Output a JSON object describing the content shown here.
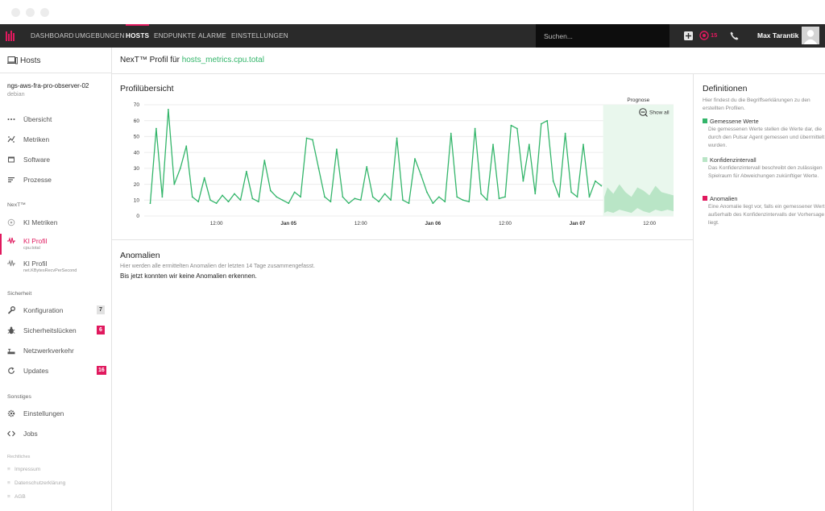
{
  "nav": {
    "items": [
      "DASHBOARD",
      "UMGEBUNGEN",
      "HOSTS",
      "ENDPUNKTE",
      "ALARME",
      "EINSTELLUNGEN"
    ],
    "active": "HOSTS",
    "search_placeholder": "Suchen...",
    "alarm_count": "15",
    "user_name": "Max Tarantik",
    "accent_color": "#e0195e"
  },
  "sidebar": {
    "title": "Hosts",
    "hostname": "ngs-aws-fra-pro-observer-02",
    "os": "debian",
    "main_items": [
      {
        "label": "Übersicht",
        "icon": "dots-icon"
      },
      {
        "label": "Metriken",
        "icon": "metrics-icon"
      },
      {
        "label": "Software",
        "icon": "software-icon"
      },
      {
        "label": "Prozesse",
        "icon": "processes-icon"
      }
    ],
    "next_section": "NexT™",
    "next_items": [
      {
        "label": "KI Metriken",
        "sub": "",
        "icon": "ai-metrics-icon"
      },
      {
        "label": "KI Profil",
        "sub": "cpu.total",
        "icon": "ai-profile-icon",
        "active": true
      },
      {
        "label": "KI Profil",
        "sub": "net.KBytesRecvPerSecond",
        "icon": "ai-profile-icon"
      }
    ],
    "security_section": "Sicherheit",
    "security_items": [
      {
        "label": "Konfiguration",
        "badge": "7",
        "badge_style": "gray",
        "icon": "wrench-icon"
      },
      {
        "label": "Sicherheitslücken",
        "badge": "6",
        "badge_style": "pink",
        "icon": "bug-icon"
      },
      {
        "label": "Netzwerkverkehr",
        "badge": "",
        "icon": "network-icon"
      },
      {
        "label": "Updates",
        "badge": "16",
        "badge_style": "pink",
        "icon": "updates-icon"
      }
    ],
    "other_section": "Sonstiges",
    "other_items": [
      {
        "label": "Einstellungen",
        "icon": "gear-icon"
      },
      {
        "label": "Jobs",
        "icon": "code-icon"
      }
    ],
    "legal_section": "Rechtliches",
    "legal_items": [
      "Impressum",
      "Datenschutzerklärung",
      "AGB"
    ]
  },
  "main": {
    "title_prefix": "NexT™ Profil für",
    "metric": "hosts_metrics.cpu.total",
    "overview_title": "Profilübersicht",
    "anomalies_title": "Anomalien",
    "anomalies_desc": "Hier werden alle ermittelten Anomalien der letzten 14 Tage zusammengefasst.",
    "anomalies_message": "Bis jetzt konnten wir keine Anomalien erkennen."
  },
  "definitions": {
    "title": "Definitionen",
    "intro": "Hier findest du die Begriffserklärungen zu den erstellten Profilen.",
    "items": [
      {
        "label": "Gemessene Werte",
        "color": "#33b56a",
        "text": "Die gemessenen Werte stellen die Werte dar, die durch den Pulsar Agent gemessen und übermittelt wurden."
      },
      {
        "label": "Konfidenzintervall",
        "color": "#b9e5c6",
        "text": "Das Konfidenzintervall beschreibt den zulässigen Spielraum für Abweichungen zukünftiger Werte."
      },
      {
        "label": "Anomalien",
        "color": "#e0195e",
        "text": "Eine Anomalie liegt vor, falls ein gemessener Wert außerhalb des Konfidenzintervalls der Vorhersage liegt."
      }
    ]
  },
  "chart_data": {
    "type": "line",
    "forecast_label": "Prognose",
    "show_all_label": "Show all",
    "ylim": [
      0,
      70
    ],
    "yticks": [
      0,
      10,
      20,
      30,
      40,
      50,
      60,
      70
    ],
    "xticks": [
      "12:00",
      "Jan 05",
      "12:00",
      "Jan 06",
      "12:00",
      "Jan 07",
      "12:00"
    ],
    "xticks_bold": [
      false,
      true,
      false,
      true,
      false,
      true,
      false
    ],
    "x_range_hours": [
      0,
      88
    ],
    "xtick_hours": [
      12,
      24,
      36,
      48,
      60,
      72,
      84
    ],
    "forecast_start_hour": 76.3,
    "grid": true,
    "series": [
      {
        "name": "Gemessene Werte",
        "color": "#33b56a",
        "x_hours": [
          1,
          2,
          3,
          4,
          5,
          6,
          7,
          8,
          9,
          10,
          11,
          12,
          13,
          14,
          15,
          16,
          17,
          18,
          19,
          20,
          21,
          22,
          23,
          24,
          25,
          26,
          27,
          28,
          29,
          30,
          31,
          32,
          33,
          34,
          35,
          36,
          37,
          38,
          39,
          40,
          41,
          42,
          43,
          44,
          45,
          46,
          47,
          48,
          49,
          50,
          51,
          52,
          53,
          54,
          55,
          56,
          57,
          58,
          59,
          60,
          61,
          62,
          63,
          64,
          65,
          66,
          67,
          68,
          69,
          70,
          71,
          72,
          73,
          74,
          75,
          76
        ],
        "y": [
          8,
          55,
          12,
          67,
          20,
          30,
          44,
          12,
          9,
          24,
          10,
          8,
          13,
          9,
          14,
          10,
          28,
          11,
          9,
          35,
          16,
          12,
          10,
          8,
          15,
          12,
          49,
          48,
          30,
          12,
          9,
          42,
          12,
          8,
          11,
          10,
          31,
          12,
          9,
          14,
          10,
          49,
          10,
          8,
          36,
          26,
          15,
          8,
          12,
          9,
          52,
          12,
          10,
          9,
          55,
          14,
          10,
          45,
          11,
          12,
          57,
          55,
          22,
          45,
          14,
          58,
          60,
          22,
          12,
          52,
          15,
          12,
          45,
          12,
          22,
          19
        ]
      },
      {
        "name": "Konfidenzintervall",
        "color": "#b9e5c6",
        "x_hours": [
          76.5,
          77,
          78,
          79,
          80,
          81,
          82,
          83,
          84,
          85,
          86,
          87,
          88
        ],
        "lower": [
          2,
          3,
          2,
          4,
          3,
          2,
          5,
          3,
          2,
          4,
          3,
          4,
          3
        ],
        "upper": [
          12,
          18,
          14,
          20,
          15,
          12,
          18,
          16,
          13,
          19,
          15,
          14,
          13
        ]
      }
    ]
  }
}
